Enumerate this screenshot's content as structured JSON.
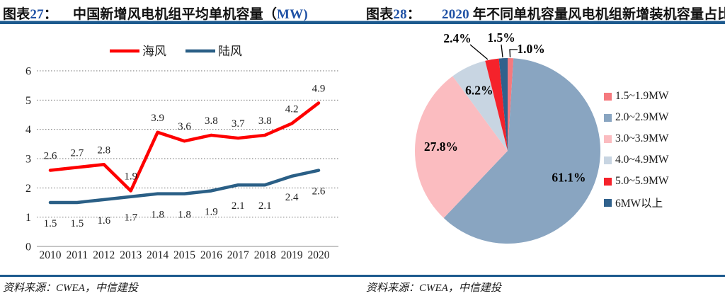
{
  "colors": {
    "accent_blue": "#1F51A5",
    "rule_blue": "#1D5A8E",
    "offshore_red": "#FE0000",
    "onshore_blue": "#2A5F86"
  },
  "left": {
    "label_pre": "图表",
    "label_num": "27",
    "label_colon": "：",
    "title_pre": "中国新增风电机组平均单机容量（",
    "title_accent": "MW",
    "title_close": ")",
    "source": "资料来源：CWEA，中信建投"
  },
  "right": {
    "label_pre": "图表",
    "label_num": "28",
    "label_colon": "：",
    "title_accent": "2020",
    "title_rest": " 年不同单机容量风电机组新增装机容量占比",
    "source": "资料来源：CWEA，中信建投"
  },
  "chart_data": [
    {
      "type": "line",
      "title": "中国新增风电机组平均单机容量（MW）",
      "categories": [
        "2010",
        "2011",
        "2012",
        "2013",
        "2014",
        "2015",
        "2016",
        "2017",
        "2018",
        "2019",
        "2020"
      ],
      "series": [
        {
          "name": "海风",
          "color": "#FE0000",
          "values": [
            2.6,
            2.7,
            2.8,
            1.9,
            3.9,
            3.6,
            3.8,
            3.7,
            3.8,
            4.2,
            4.9
          ]
        },
        {
          "name": "陆风",
          "color": "#2A5F86",
          "values": [
            1.5,
            1.5,
            1.6,
            1.7,
            1.8,
            1.8,
            1.9,
            2.1,
            2.1,
            2.4,
            2.6
          ]
        }
      ],
      "xlabel": "",
      "ylabel": "",
      "ylim": [
        0,
        6
      ],
      "ytick_step": 1,
      "grid": "horizontal-dotted",
      "legend_position": "top"
    },
    {
      "type": "pie",
      "title": "2020 年不同单机容量风电机组新增装机容量占比",
      "start_angle_deg": 0,
      "direction": "clockwise",
      "legend_position": "right",
      "slices": [
        {
          "label": "1.5~1.9MW",
          "value": 1.0,
          "display": "1.0%",
          "color": "#F5797E"
        },
        {
          "label": "2.0~2.9MW",
          "value": 61.1,
          "display": "61.1%",
          "color": "#89A5C1"
        },
        {
          "label": "3.0~3.9MW",
          "value": 27.8,
          "display": "27.8%",
          "color": "#FBBCC0"
        },
        {
          "label": "4.0~4.9MW",
          "value": 6.2,
          "display": "6.2%",
          "color": "#C8D5E2"
        },
        {
          "label": "5.0~5.9MW",
          "value": 2.4,
          "display": "2.4%",
          "color": "#F5222B"
        },
        {
          "label": "6MW以上",
          "value": 1.5,
          "display": "1.5%",
          "color": "#30618C"
        }
      ]
    }
  ]
}
